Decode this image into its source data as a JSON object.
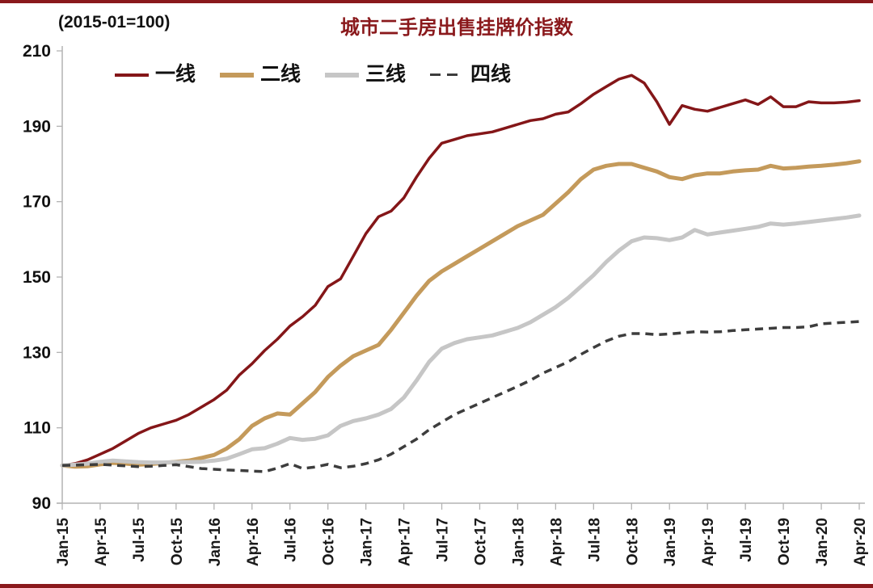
{
  "header": {
    "index_note": "(2015-01=100)",
    "title": "城市二手房出售挂牌价指数",
    "accent_color": "#8a191c"
  },
  "chart_data": {
    "type": "line",
    "title": "城市二手房出售挂牌价指数",
    "subtitle": "(2015-01=100)",
    "x_frequency": "monthly",
    "x_start": "Jan-15",
    "x_end": "Apr-20",
    "x_tick_every_months": 3,
    "x_tick_labels": [
      "Jan-15",
      "Apr-15",
      "Jul-15",
      "Oct-15",
      "Jan-16",
      "Apr-16",
      "Jul-16",
      "Oct-16",
      "Jan-17",
      "Apr-17",
      "Jul-17",
      "Oct-17",
      "Jan-18",
      "Apr-18",
      "Jul-18",
      "Oct-18",
      "Jan-19",
      "Apr-19",
      "Jul-19",
      "Oct-19",
      "Jan-20",
      "Apr-20"
    ],
    "ylim": [
      90,
      210
    ],
    "y_ticks": [
      90,
      110,
      130,
      150,
      170,
      190,
      210
    ],
    "grid": false,
    "legend_position": "top-left-inside",
    "series": [
      {
        "name": "一线",
        "color": "#841618",
        "style": "solid",
        "width": 3.5,
        "values": [
          100,
          100.5,
          101.5,
          103,
          104.5,
          106.5,
          108.5,
          110,
          111,
          112,
          113.5,
          115.5,
          117.5,
          120,
          124,
          127,
          130.5,
          133.5,
          137,
          139.5,
          142.5,
          147.5,
          149.5,
          155.5,
          161.5,
          166,
          167.5,
          171,
          176.5,
          181.5,
          185.5,
          186.5,
          187.5,
          188,
          188.5,
          189.5,
          190.5,
          191.5,
          192,
          193.2,
          193.8,
          196,
          198.5,
          200.5,
          202.5,
          203.5,
          201.5,
          196.5,
          190.5,
          195.5,
          194.5,
          194,
          195,
          196,
          197,
          195.8,
          197.8,
          195.2,
          195.2,
          196.5,
          196.2,
          196.2,
          196.4,
          196.8
        ]
      },
      {
        "name": "二线",
        "color": "#c49a5b",
        "style": "solid",
        "width": 5,
        "values": [
          100,
          99.7,
          99.8,
          100.3,
          100.7,
          100.5,
          100.2,
          100.4,
          100.7,
          101,
          101.3,
          102,
          102.8,
          104.5,
          107,
          110.5,
          112.5,
          113.8,
          113.5,
          116.5,
          119.5,
          123.5,
          126.5,
          129,
          130.5,
          132,
          136,
          140.5,
          145,
          149,
          151.5,
          153.5,
          155.5,
          157.5,
          159.5,
          161.5,
          163.5,
          165,
          166.5,
          169.5,
          172.5,
          176,
          178.5,
          179.5,
          180,
          180,
          179,
          178,
          176.5,
          176,
          177,
          177.5,
          177.5,
          178,
          178.3,
          178.5,
          179.5,
          178.8,
          179,
          179.3,
          179.5,
          179.8,
          180.2,
          180.7
        ]
      },
      {
        "name": "三线",
        "color": "#c6c6c6",
        "style": "solid",
        "width": 5,
        "values": [
          100,
          100.2,
          100.5,
          101,
          101.3,
          101.1,
          100.9,
          100.8,
          100.8,
          100.9,
          100.9,
          101,
          101.3,
          101.8,
          103,
          104.3,
          104.6,
          105.8,
          107.3,
          106.8,
          107.1,
          108,
          110.5,
          111.8,
          112.5,
          113.5,
          115,
          118,
          122.5,
          127.5,
          131,
          132.5,
          133.5,
          134,
          134.5,
          135.5,
          136.5,
          138,
          140,
          142,
          144.5,
          147.5,
          150.5,
          154,
          157,
          159.5,
          160.5,
          160.3,
          159.8,
          160.5,
          162.5,
          161.3,
          161.8,
          162.3,
          162.8,
          163.3,
          164.2,
          163.9,
          164.2,
          164.6,
          165,
          165.4,
          165.8,
          166.3
        ]
      },
      {
        "name": "四线",
        "color": "#3d3d3d",
        "style": "dashed",
        "width": 3.5,
        "values": [
          100,
          100.1,
          100.2,
          100.3,
          100.1,
          99.9,
          99.7,
          99.8,
          100,
          100.2,
          99.7,
          99.2,
          99,
          98.8,
          98.7,
          98.5,
          98.4,
          99.3,
          100.5,
          99.2,
          99.6,
          100.3,
          99.4,
          99.8,
          100.5,
          101.5,
          103,
          105,
          107,
          109.5,
          111.5,
          113.5,
          115,
          116.5,
          118,
          119.5,
          121,
          122.6,
          124.5,
          126,
          127.5,
          129.5,
          131.3,
          133,
          134.3,
          135,
          135,
          134.7,
          134.9,
          135.2,
          135.5,
          135.4,
          135.5,
          135.8,
          136,
          136.2,
          136.4,
          136.6,
          136.6,
          136.8,
          137.6,
          137.8,
          138,
          138.2
        ]
      }
    ]
  }
}
